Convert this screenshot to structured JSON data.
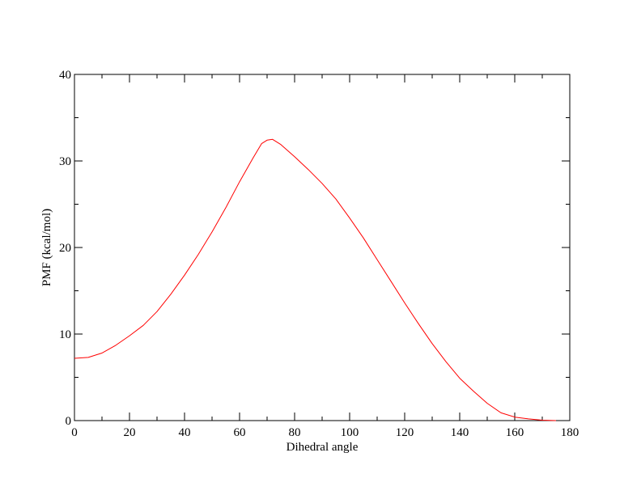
{
  "chart_data": {
    "type": "line",
    "title": "",
    "xlabel": "Dihedral angle",
    "ylabel": "PMF (kcal/mol)",
    "xlim": [
      0,
      180
    ],
    "ylim": [
      0,
      40
    ],
    "x_major_ticks": [
      0,
      20,
      40,
      60,
      80,
      100,
      120,
      140,
      160,
      180
    ],
    "x_minor_ticks": [
      10,
      30,
      50,
      70,
      90,
      110,
      130,
      150,
      170
    ],
    "y_major_ticks": [
      0,
      10,
      20,
      30,
      40
    ],
    "y_minor_ticks": [
      5,
      15,
      25,
      35
    ],
    "grid": false,
    "legend": "none",
    "series": [
      {
        "color": "#ff0000",
        "x": [
          0,
          5,
          10,
          15,
          20,
          25,
          30,
          35,
          40,
          45,
          50,
          55,
          60,
          65,
          68,
          70,
          72,
          75,
          80,
          85,
          90,
          95,
          100,
          105,
          110,
          115,
          120,
          125,
          130,
          135,
          140,
          145,
          150,
          155,
          160,
          165,
          170,
          175
        ],
        "y": [
          7.2,
          7.3,
          7.8,
          8.7,
          9.8,
          11.0,
          12.6,
          14.6,
          16.8,
          19.2,
          21.8,
          24.6,
          27.6,
          30.4,
          32.0,
          32.4,
          32.5,
          31.9,
          30.5,
          29.0,
          27.4,
          25.6,
          23.4,
          21.1,
          18.6,
          16.1,
          13.6,
          11.2,
          8.9,
          6.8,
          4.9,
          3.4,
          2.0,
          0.9,
          0.4,
          0.2,
          0.05,
          0.0
        ]
      }
    ]
  }
}
